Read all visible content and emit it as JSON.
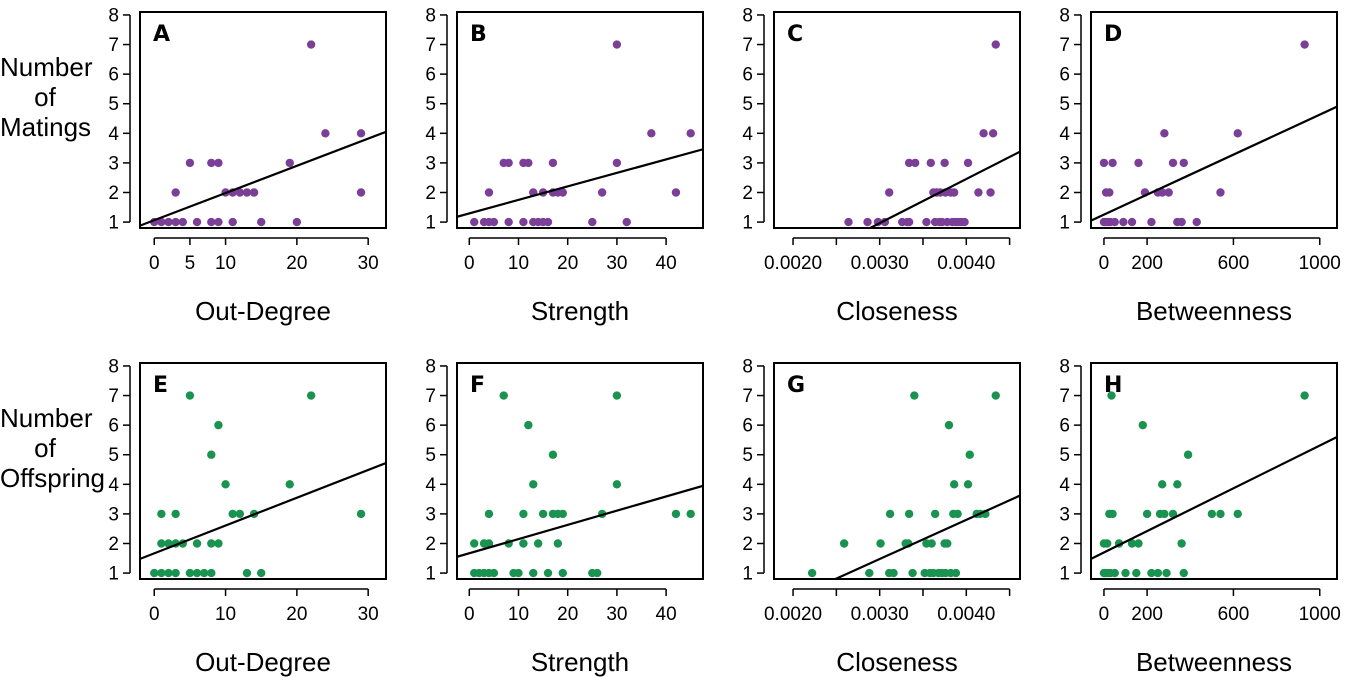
{
  "row_labels": [
    [
      "Number of",
      "Matings"
    ],
    [
      "Number of",
      "Offspring"
    ]
  ],
  "colors": {
    "matings": "#7b3f98",
    "offspring": "#1a9350",
    "line": "#000000"
  },
  "chart_data": [
    {
      "type": "scatter",
      "panel": "A",
      "xlabel": "Out-Degree",
      "ylabel": "Number of Matings",
      "xlim": [
        -2,
        32.5
      ],
      "ylim": [
        0.8,
        8.1
      ],
      "xticks": [
        0,
        5,
        10,
        20,
        30
      ],
      "xtick_labels": [
        "0",
        "5",
        "10",
        "20",
        "30"
      ],
      "yticks": [
        1,
        2,
        3,
        4,
        5,
        6,
        7,
        8
      ],
      "ytick_labels": [
        "1",
        "2",
        "3",
        "4",
        "5",
        "6",
        "7",
        "8"
      ],
      "color": "matings",
      "points": [
        [
          0,
          1
        ],
        [
          1,
          1
        ],
        [
          2,
          1
        ],
        [
          3,
          1
        ],
        [
          3,
          2
        ],
        [
          4,
          1
        ],
        [
          5,
          3
        ],
        [
          6,
          1
        ],
        [
          8,
          1
        ],
        [
          8,
          3
        ],
        [
          9,
          1
        ],
        [
          9,
          3
        ],
        [
          10,
          2
        ],
        [
          11,
          1
        ],
        [
          11,
          2
        ],
        [
          12,
          2
        ],
        [
          13,
          2
        ],
        [
          14,
          2
        ],
        [
          15,
          1
        ],
        [
          19,
          3
        ],
        [
          20,
          1
        ],
        [
          22,
          7
        ],
        [
          24,
          4
        ],
        [
          29,
          2
        ],
        [
          29,
          4
        ]
      ],
      "trend": [
        [
          -2,
          0.88
        ],
        [
          32.5,
          4.05
        ]
      ]
    },
    {
      "type": "scatter",
      "panel": "B",
      "xlabel": "Strength",
      "ylabel": "Number of Matings",
      "xlim": [
        -2.5,
        47.5
      ],
      "ylim": [
        0.8,
        8.1
      ],
      "xticks": [
        0,
        10,
        20,
        30,
        40
      ],
      "xtick_labels": [
        "0",
        "10",
        "20",
        "30",
        "40"
      ],
      "yticks": [
        1,
        2,
        3,
        4,
        5,
        6,
        7,
        8
      ],
      "ytick_labels": [
        "1",
        "2",
        "3",
        "4",
        "5",
        "6",
        "7",
        "8"
      ],
      "color": "matings",
      "points": [
        [
          1,
          1
        ],
        [
          3,
          1
        ],
        [
          4,
          1
        ],
        [
          4,
          2
        ],
        [
          5,
          1
        ],
        [
          7,
          3
        ],
        [
          8,
          1
        ],
        [
          8,
          3
        ],
        [
          11,
          1
        ],
        [
          11,
          3
        ],
        [
          12,
          3
        ],
        [
          13,
          1
        ],
        [
          13,
          2
        ],
        [
          14,
          1
        ],
        [
          15,
          1
        ],
        [
          15,
          2
        ],
        [
          16,
          1
        ],
        [
          17,
          2
        ],
        [
          17,
          3
        ],
        [
          18,
          2
        ],
        [
          19,
          2
        ],
        [
          25,
          1
        ],
        [
          27,
          2
        ],
        [
          30,
          3
        ],
        [
          30,
          7
        ],
        [
          32,
          1
        ],
        [
          37,
          4
        ],
        [
          42,
          2
        ],
        [
          45,
          4
        ]
      ],
      "trend": [
        [
          -2.5,
          1.18
        ],
        [
          47.5,
          3.46
        ]
      ]
    },
    {
      "type": "scatter",
      "panel": "C",
      "xlabel": "Closeness",
      "ylabel": "Number of Matings",
      "xlim": [
        0.00178,
        0.00462
      ],
      "ylim": [
        0.8,
        8.1
      ],
      "xticks": [
        0.002,
        0.0025,
        0.003,
        0.0035,
        0.004,
        0.0045
      ],
      "xtick_labels": [
        "0.0020",
        "",
        "0.0030",
        "",
        "0.0040",
        ""
      ],
      "yticks": [
        1,
        2,
        3,
        4,
        5,
        6,
        7,
        8
      ],
      "ytick_labels": [
        "1",
        "2",
        "3",
        "4",
        "5",
        "6",
        "7",
        "8"
      ],
      "color": "matings",
      "points": [
        [
          0.00264,
          1
        ],
        [
          0.00286,
          1
        ],
        [
          0.00298,
          1
        ],
        [
          0.00306,
          1
        ],
        [
          0.00311,
          2
        ],
        [
          0.00326,
          1
        ],
        [
          0.00332,
          1
        ],
        [
          0.00334,
          1
        ],
        [
          0.00334,
          3
        ],
        [
          0.00341,
          3
        ],
        [
          0.00354,
          1
        ],
        [
          0.00359,
          3
        ],
        [
          0.00362,
          2
        ],
        [
          0.00364,
          1
        ],
        [
          0.00366,
          2
        ],
        [
          0.00369,
          1
        ],
        [
          0.0037,
          2
        ],
        [
          0.00372,
          1
        ],
        [
          0.00375,
          3
        ],
        [
          0.00376,
          2
        ],
        [
          0.00378,
          1
        ],
        [
          0.00382,
          2
        ],
        [
          0.00384,
          1
        ],
        [
          0.00386,
          2
        ],
        [
          0.00388,
          1
        ],
        [
          0.00391,
          1
        ],
        [
          0.00394,
          1
        ],
        [
          0.00398,
          1
        ],
        [
          0.00402,
          3
        ],
        [
          0.00414,
          2
        ],
        [
          0.0042,
          4
        ],
        [
          0.00428,
          2
        ],
        [
          0.00431,
          4
        ],
        [
          0.00434,
          7
        ]
      ],
      "trend": [
        [
          0.00289,
          0.8
        ],
        [
          0.00462,
          3.38
        ]
      ]
    },
    {
      "type": "scatter",
      "panel": "D",
      "xlabel": "Betweenness",
      "ylabel": "Number of Matings",
      "xlim": [
        -60,
        1080
      ],
      "ylim": [
        0.8,
        8.1
      ],
      "xticks": [
        0,
        200,
        600,
        1000
      ],
      "xtick_labels": [
        "0",
        "200",
        "600",
        "1000"
      ],
      "yticks": [
        1,
        2,
        3,
        4,
        5,
        6,
        7,
        8
      ],
      "ytick_labels": [
        "1",
        "2",
        "3",
        "4",
        "5",
        "6",
        "7",
        "8"
      ],
      "color": "matings",
      "points": [
        [
          0,
          1
        ],
        [
          0,
          3
        ],
        [
          5,
          1
        ],
        [
          10,
          2
        ],
        [
          15,
          1
        ],
        [
          20,
          1
        ],
        [
          25,
          2
        ],
        [
          30,
          1
        ],
        [
          40,
          3
        ],
        [
          50,
          1
        ],
        [
          90,
          1
        ],
        [
          130,
          1
        ],
        [
          160,
          3
        ],
        [
          190,
          2
        ],
        [
          220,
          1
        ],
        [
          250,
          2
        ],
        [
          270,
          2
        ],
        [
          280,
          4
        ],
        [
          300,
          2
        ],
        [
          320,
          3
        ],
        [
          340,
          1
        ],
        [
          360,
          1
        ],
        [
          370,
          3
        ],
        [
          430,
          1
        ],
        [
          540,
          2
        ],
        [
          620,
          4
        ],
        [
          930,
          7
        ]
      ],
      "trend": [
        [
          -60,
          1.05
        ],
        [
          1080,
          4.9
        ]
      ]
    },
    {
      "type": "scatter",
      "panel": "E",
      "xlabel": "Out-Degree",
      "ylabel": "Number of Offspring",
      "xlim": [
        -2,
        32.5
      ],
      "ylim": [
        0.8,
        8.1
      ],
      "xticks": [
        0,
        10,
        20,
        30
      ],
      "xtick_labels": [
        "0",
        "10",
        "20",
        "30"
      ],
      "yticks": [
        1,
        2,
        3,
        4,
        5,
        6,
        7,
        8
      ],
      "ytick_labels": [
        "1",
        "2",
        "3",
        "4",
        "5",
        "6",
        "7",
        "8"
      ],
      "color": "offspring",
      "points": [
        [
          0,
          1
        ],
        [
          1,
          1
        ],
        [
          1,
          2
        ],
        [
          1,
          3
        ],
        [
          2,
          1
        ],
        [
          2,
          2
        ],
        [
          3,
          1
        ],
        [
          3,
          2
        ],
        [
          3,
          3
        ],
        [
          4,
          2
        ],
        [
          5,
          1
        ],
        [
          5,
          7
        ],
        [
          6,
          1
        ],
        [
          6,
          2
        ],
        [
          7,
          1
        ],
        [
          8,
          1
        ],
        [
          8,
          2
        ],
        [
          8,
          5
        ],
        [
          9,
          2
        ],
        [
          9,
          6
        ],
        [
          10,
          4
        ],
        [
          11,
          3
        ],
        [
          12,
          3
        ],
        [
          13,
          1
        ],
        [
          14,
          3
        ],
        [
          15,
          1
        ],
        [
          19,
          4
        ],
        [
          22,
          7
        ],
        [
          29,
          3
        ]
      ],
      "trend": [
        [
          -2,
          1.48
        ],
        [
          32.5,
          4.72
        ]
      ]
    },
    {
      "type": "scatter",
      "panel": "F",
      "xlabel": "Strength",
      "ylabel": "Number of Offspring",
      "xlim": [
        -2.5,
        47.5
      ],
      "ylim": [
        0.8,
        8.1
      ],
      "xticks": [
        0,
        10,
        20,
        30,
        40
      ],
      "xtick_labels": [
        "0",
        "10",
        "20",
        "30",
        "40"
      ],
      "yticks": [
        1,
        2,
        3,
        4,
        5,
        6,
        7,
        8
      ],
      "ytick_labels": [
        "1",
        "2",
        "3",
        "4",
        "5",
        "6",
        "7",
        "8"
      ],
      "color": "offspring",
      "points": [
        [
          1,
          1
        ],
        [
          1,
          2
        ],
        [
          2,
          1
        ],
        [
          3,
          1
        ],
        [
          3,
          2
        ],
        [
          4,
          1
        ],
        [
          4,
          2
        ],
        [
          4,
          3
        ],
        [
          5,
          1
        ],
        [
          7,
          7
        ],
        [
          8,
          2
        ],
        [
          9,
          1
        ],
        [
          10,
          1
        ],
        [
          11,
          2
        ],
        [
          11,
          3
        ],
        [
          12,
          6
        ],
        [
          13,
          1
        ],
        [
          13,
          4
        ],
        [
          14,
          2
        ],
        [
          15,
          3
        ],
        [
          16,
          1
        ],
        [
          17,
          3
        ],
        [
          17,
          5
        ],
        [
          18,
          2
        ],
        [
          18,
          3
        ],
        [
          19,
          1
        ],
        [
          19,
          3
        ],
        [
          25,
          1
        ],
        [
          26,
          1
        ],
        [
          27,
          3
        ],
        [
          30,
          4
        ],
        [
          30,
          7
        ],
        [
          42,
          3
        ],
        [
          45,
          3
        ]
      ],
      "trend": [
        [
          -2.5,
          1.55
        ],
        [
          47.5,
          3.95
        ]
      ]
    },
    {
      "type": "scatter",
      "panel": "G",
      "xlabel": "Closeness",
      "ylabel": "Number of Offspring",
      "xlim": [
        0.00178,
        0.00462
      ],
      "ylim": [
        0.8,
        8.1
      ],
      "xticks": [
        0.002,
        0.0025,
        0.003,
        0.0035,
        0.004,
        0.0045
      ],
      "xtick_labels": [
        "0.0020",
        "",
        "0.0030",
        "",
        "0.0040",
        ""
      ],
      "yticks": [
        1,
        2,
        3,
        4,
        5,
        6,
        7,
        8
      ],
      "ytick_labels": [
        "1",
        "2",
        "3",
        "4",
        "5",
        "6",
        "7",
        "8"
      ],
      "color": "offspring",
      "points": [
        [
          0.00222,
          1
        ],
        [
          0.00259,
          2
        ],
        [
          0.00288,
          1
        ],
        [
          0.00301,
          2
        ],
        [
          0.00311,
          1
        ],
        [
          0.00312,
          3
        ],
        [
          0.00316,
          1
        ],
        [
          0.0033,
          2
        ],
        [
          0.00333,
          2
        ],
        [
          0.00334,
          3
        ],
        [
          0.00338,
          1
        ],
        [
          0.0034,
          7
        ],
        [
          0.00352,
          1
        ],
        [
          0.00354,
          2
        ],
        [
          0.00358,
          1
        ],
        [
          0.0036,
          2
        ],
        [
          0.00362,
          1
        ],
        [
          0.00364,
          3
        ],
        [
          0.00368,
          1
        ],
        [
          0.00372,
          1
        ],
        [
          0.00375,
          2
        ],
        [
          0.00376,
          1
        ],
        [
          0.00378,
          2
        ],
        [
          0.0038,
          6
        ],
        [
          0.00382,
          1
        ],
        [
          0.00385,
          3
        ],
        [
          0.00386,
          4
        ],
        [
          0.00388,
          1
        ],
        [
          0.0039,
          3
        ],
        [
          0.00402,
          4
        ],
        [
          0.00404,
          5
        ],
        [
          0.00412,
          3
        ],
        [
          0.00416,
          3
        ],
        [
          0.00422,
          3
        ],
        [
          0.00434,
          7
        ]
      ],
      "trend": [
        [
          0.00249,
          0.8
        ],
        [
          0.00462,
          3.62
        ]
      ]
    },
    {
      "type": "scatter",
      "panel": "H",
      "xlabel": "Betweenness",
      "ylabel": "Number of Offspring",
      "xlim": [
        -60,
        1080
      ],
      "ylim": [
        0.8,
        8.1
      ],
      "xticks": [
        0,
        200,
        600,
        1000
      ],
      "xtick_labels": [
        "0",
        "200",
        "600",
        "1000"
      ],
      "yticks": [
        1,
        2,
        3,
        4,
        5,
        6,
        7,
        8
      ],
      "ytick_labels": [
        "1",
        "2",
        "3",
        "4",
        "5",
        "6",
        "7",
        "8"
      ],
      "color": "offspring",
      "points": [
        [
          0,
          1
        ],
        [
          0,
          2
        ],
        [
          5,
          1
        ],
        [
          10,
          1
        ],
        [
          15,
          2
        ],
        [
          20,
          1
        ],
        [
          25,
          3
        ],
        [
          30,
          1
        ],
        [
          35,
          7
        ],
        [
          40,
          3
        ],
        [
          50,
          1
        ],
        [
          70,
          2
        ],
        [
          100,
          1
        ],
        [
          130,
          2
        ],
        [
          150,
          1
        ],
        [
          160,
          2
        ],
        [
          180,
          6
        ],
        [
          200,
          3
        ],
        [
          220,
          1
        ],
        [
          250,
          1
        ],
        [
          260,
          3
        ],
        [
          270,
          4
        ],
        [
          280,
          3
        ],
        [
          290,
          1
        ],
        [
          320,
          3
        ],
        [
          340,
          4
        ],
        [
          360,
          2
        ],
        [
          370,
          1
        ],
        [
          390,
          5
        ],
        [
          500,
          3
        ],
        [
          540,
          3
        ],
        [
          620,
          3
        ],
        [
          930,
          7
        ]
      ],
      "trend": [
        [
          -60,
          1.48
        ],
        [
          1080,
          5.6
        ]
      ]
    }
  ]
}
